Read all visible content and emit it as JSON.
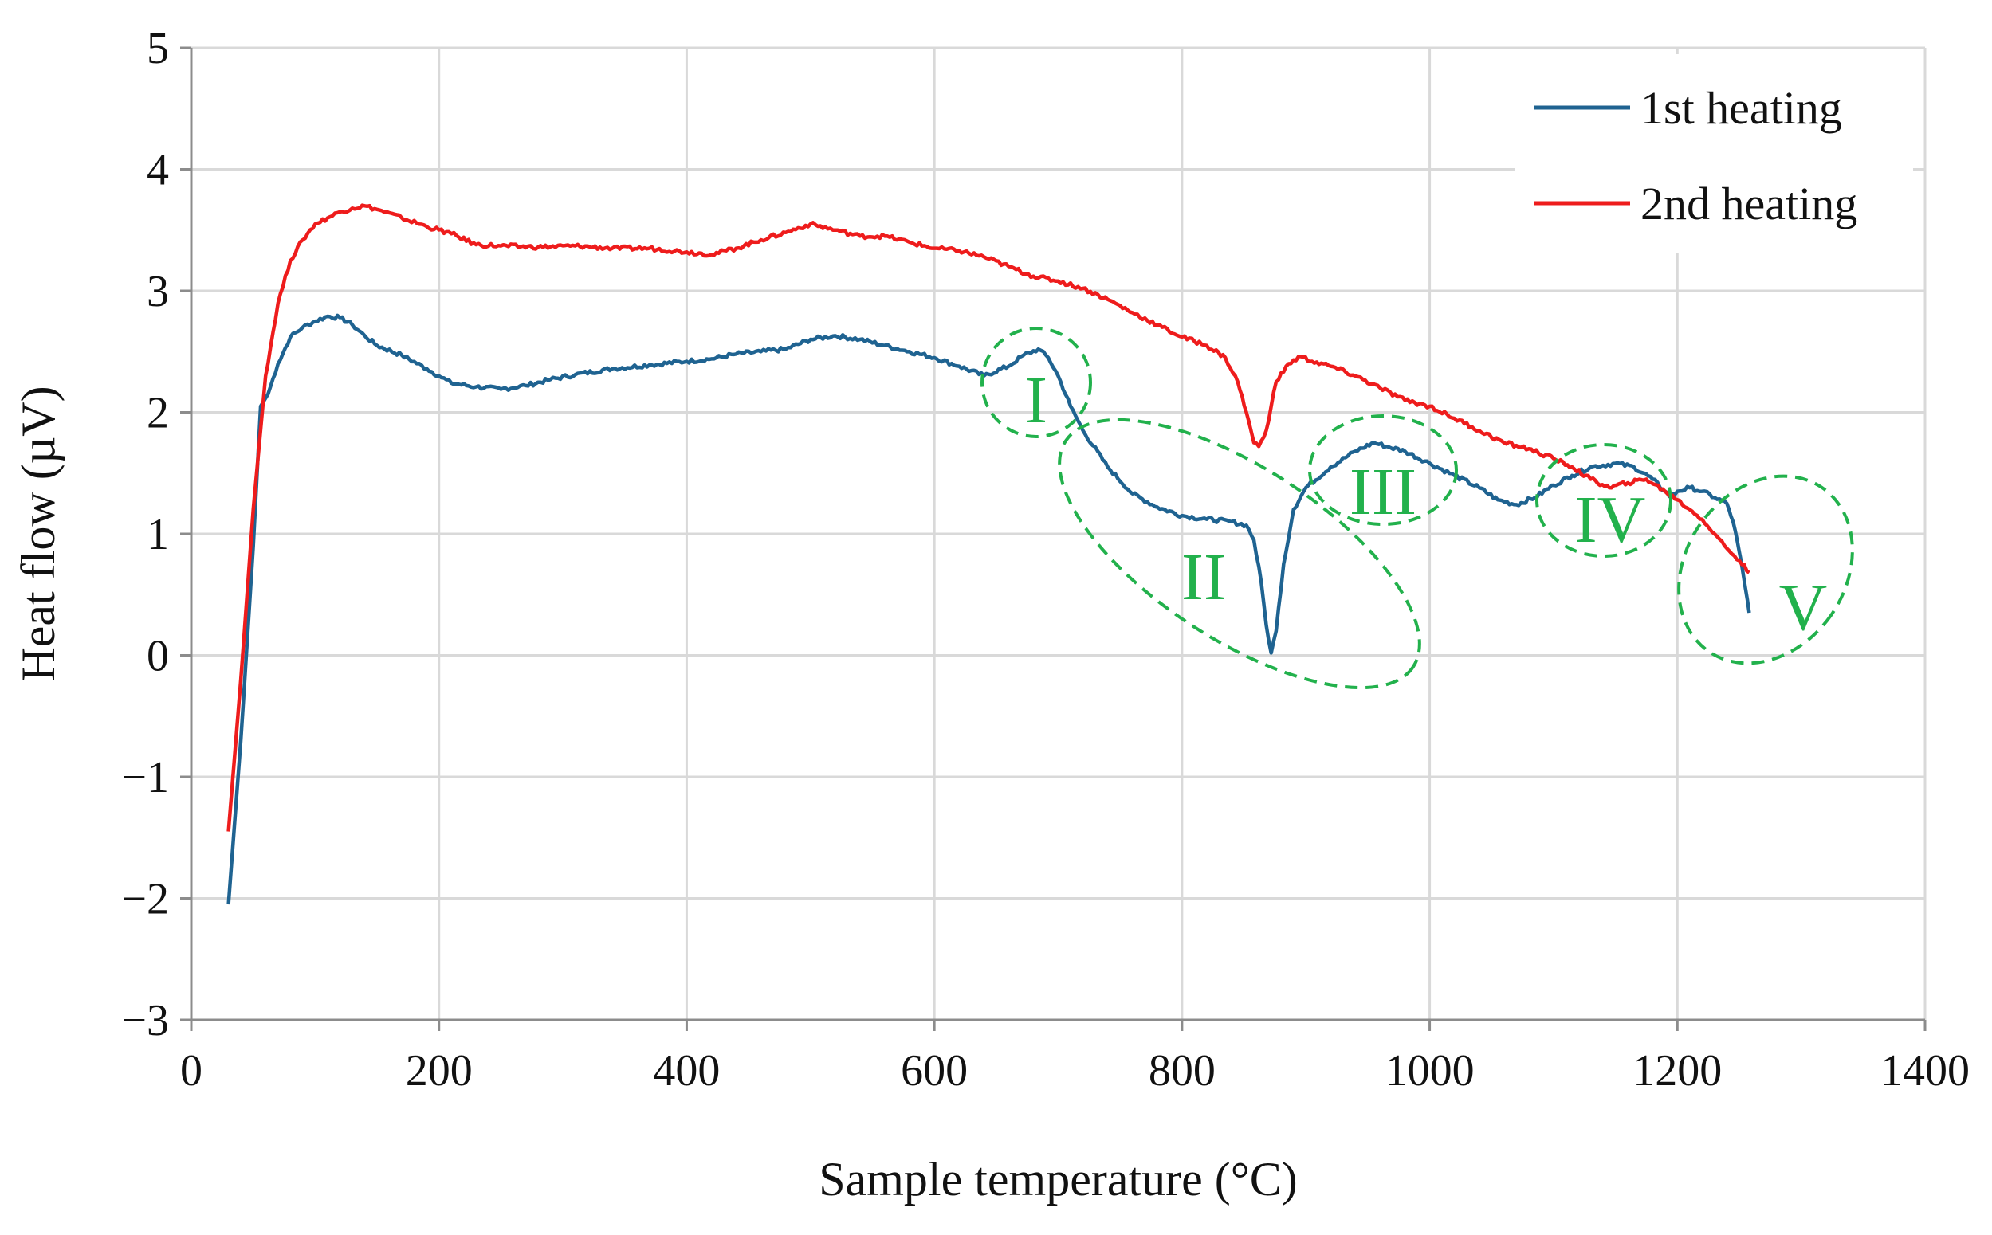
{
  "chart_data": {
    "type": "line",
    "title": "",
    "xlabel": "Sample temperature (°C)",
    "ylabel": "Heat flow (µV)",
    "xlim": [
      0,
      1400
    ],
    "ylim": [
      -3,
      5
    ],
    "xticks": [
      0,
      200,
      400,
      600,
      800,
      1000,
      1200,
      1400
    ],
    "yticks": [
      -3,
      -2,
      -1,
      0,
      1,
      2,
      3,
      4,
      5
    ],
    "xtick_labels": [
      "0",
      "200",
      "400",
      "600",
      "800",
      "1000",
      "1200",
      "1400"
    ],
    "ytick_labels": [
      "−3",
      "−2",
      "−1",
      "0",
      "1",
      "2",
      "3",
      "4",
      "5"
    ],
    "grid": true,
    "legend_position": "top-right",
    "series": [
      {
        "name": "1st heating",
        "color": "#1f6391",
        "x": [
          30,
          40,
          50,
          56,
          62,
          70,
          80,
          90,
          100,
          110,
          120,
          130,
          140,
          150,
          170,
          190,
          200,
          210,
          230,
          250,
          270,
          290,
          310,
          340,
          370,
          400,
          420,
          440,
          460,
          480,
          500,
          520,
          540,
          560,
          580,
          600,
          620,
          640,
          660,
          672,
          684,
          692,
          700,
          710,
          720,
          740,
          760,
          780,
          800,
          820,
          840,
          852,
          858,
          864,
          868,
          872,
          876,
          882,
          890,
          900,
          920,
          940,
          955,
          965,
          980,
          1000,
          1020,
          1040,
          1055,
          1070,
          1085,
          1100,
          1115,
          1130,
          1150,
          1165,
          1180,
          1190,
          1195,
          1200,
          1210,
          1220,
          1230,
          1240,
          1245,
          1250,
          1255,
          1258
        ],
        "y": [
          -2.05,
          -0.7,
          0.9,
          2.05,
          2.15,
          2.4,
          2.62,
          2.7,
          2.75,
          2.79,
          2.78,
          2.72,
          2.63,
          2.55,
          2.47,
          2.36,
          2.3,
          2.24,
          2.21,
          2.19,
          2.22,
          2.27,
          2.31,
          2.36,
          2.39,
          2.42,
          2.44,
          2.48,
          2.5,
          2.52,
          2.6,
          2.63,
          2.6,
          2.55,
          2.5,
          2.45,
          2.38,
          2.3,
          2.38,
          2.47,
          2.52,
          2.45,
          2.3,
          2.05,
          1.85,
          1.55,
          1.33,
          1.22,
          1.15,
          1.12,
          1.1,
          1.07,
          0.95,
          0.6,
          0.25,
          0.02,
          0.2,
          0.75,
          1.2,
          1.38,
          1.55,
          1.68,
          1.75,
          1.72,
          1.68,
          1.58,
          1.48,
          1.38,
          1.28,
          1.24,
          1.3,
          1.4,
          1.48,
          1.55,
          1.58,
          1.55,
          1.45,
          1.35,
          1.3,
          1.35,
          1.38,
          1.35,
          1.3,
          1.25,
          1.1,
          0.85,
          0.55,
          0.35
        ]
      },
      {
        "name": "2nd heating",
        "color": "#ee1c1c",
        "x": [
          30,
          40,
          50,
          60,
          70,
          80,
          90,
          100,
          110,
          120,
          130,
          140,
          150,
          170,
          190,
          210,
          230,
          250,
          280,
          310,
          340,
          370,
          400,
          420,
          440,
          460,
          480,
          500,
          520,
          540,
          560,
          580,
          600,
          620,
          640,
          660,
          680,
          700,
          720,
          740,
          760,
          780,
          800,
          820,
          835,
          845,
          852,
          858,
          862,
          868,
          876,
          886,
          896,
          905,
          920,
          940,
          960,
          980,
          1000,
          1020,
          1040,
          1060,
          1080,
          1100,
          1115,
          1130,
          1145,
          1160,
          1175,
          1190,
          1200,
          1210,
          1220,
          1230,
          1240,
          1250,
          1258
        ],
        "y": [
          -1.45,
          -0.2,
          1.2,
          2.3,
          2.9,
          3.25,
          3.42,
          3.55,
          3.6,
          3.65,
          3.68,
          3.7,
          3.67,
          3.6,
          3.53,
          3.47,
          3.38,
          3.37,
          3.36,
          3.37,
          3.35,
          3.35,
          3.32,
          3.3,
          3.35,
          3.42,
          3.48,
          3.55,
          3.5,
          3.45,
          3.45,
          3.4,
          3.35,
          3.33,
          3.28,
          3.2,
          3.12,
          3.08,
          3.02,
          2.93,
          2.82,
          2.72,
          2.62,
          2.55,
          2.45,
          2.25,
          2.0,
          1.75,
          1.72,
          1.85,
          2.25,
          2.4,
          2.46,
          2.42,
          2.38,
          2.3,
          2.2,
          2.1,
          2.05,
          1.95,
          1.85,
          1.75,
          1.7,
          1.62,
          1.55,
          1.45,
          1.38,
          1.42,
          1.45,
          1.35,
          1.28,
          1.2,
          1.12,
          1.0,
          0.88,
          0.78,
          0.68
        ]
      }
    ],
    "annotations": [
      {
        "label": "I",
        "color": "#22b14c"
      },
      {
        "label": "II",
        "color": "#22b14c"
      },
      {
        "label": "III",
        "color": "#22b14c"
      },
      {
        "label": "IV",
        "color": "#22b14c"
      },
      {
        "label": "V",
        "color": "#22b14c"
      }
    ]
  }
}
